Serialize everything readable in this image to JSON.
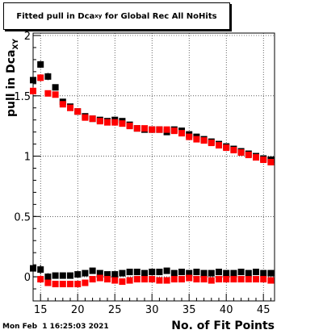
{
  "title": {
    "main": "Fitted pull in Dca",
    "sub": "xy",
    "rest": " for Global Rec All NoHits"
  },
  "ylabel": {
    "main": "pull in Dca",
    "sub": "XY"
  },
  "xlabel": "No. of Fit Points",
  "timestamp": "Mon Feb  1 16:25:03 2021",
  "colors": {
    "series_black": "#000000",
    "series_red": "#ff0000",
    "axis": "#000000",
    "grid": "#000000"
  },
  "chart_data": {
    "type": "scatter",
    "grid": true,
    "xlim": [
      14,
      46.5
    ],
    "ylim": [
      -0.2,
      2.02
    ],
    "x_ticks": [
      15,
      20,
      25,
      30,
      35,
      40,
      45
    ],
    "y_ticks": [
      0,
      0.5,
      1,
      1.5,
      2
    ],
    "y_tick_labels": [
      "0",
      "0.5",
      "1",
      "1.5",
      "2"
    ],
    "series": [
      {
        "color": "#000000",
        "x": [
          14,
          15,
          16,
          17,
          18,
          19,
          20,
          21,
          22,
          23,
          24,
          25,
          26,
          27,
          28,
          29,
          30,
          31,
          32,
          33,
          34,
          35,
          36,
          37,
          38,
          39,
          40,
          41,
          42,
          43,
          44,
          45,
          46
        ],
        "y": [
          1.63,
          1.76,
          1.66,
          1.57,
          1.45,
          1.41,
          1.37,
          1.33,
          1.31,
          1.3,
          1.29,
          1.3,
          1.29,
          1.26,
          1.23,
          1.22,
          1.22,
          1.22,
          1.2,
          1.22,
          1.21,
          1.18,
          1.16,
          1.14,
          1.12,
          1.1,
          1.08,
          1.06,
          1.04,
          1.02,
          1.0,
          0.98,
          0.97
        ],
        "err": [
          0.04,
          0.03,
          0.03,
          0.02,
          0.02,
          0.02,
          0.01,
          0.01,
          0.01,
          0.01,
          0.01,
          0.01,
          0.01,
          0.01,
          0.01,
          0.01,
          0.01,
          0.01,
          0.01,
          0.01,
          0.01,
          0.01,
          0.01,
          0.01,
          0.01,
          0.01,
          0.01,
          0.01,
          0.01,
          0.01,
          0.01,
          0.01,
          0.01
        ]
      },
      {
        "color": "#000000",
        "x": [
          14,
          15,
          16,
          17,
          18,
          19,
          20,
          21,
          22,
          23,
          24,
          25,
          26,
          27,
          28,
          29,
          30,
          31,
          32,
          33,
          34,
          35,
          36,
          37,
          38,
          39,
          40,
          41,
          42,
          43,
          44,
          45,
          46
        ],
        "y": [
          0.07,
          0.06,
          0.0,
          0.01,
          0.01,
          0.01,
          0.02,
          0.03,
          0.05,
          0.03,
          0.02,
          0.02,
          0.03,
          0.04,
          0.04,
          0.03,
          0.04,
          0.04,
          0.05,
          0.03,
          0.04,
          0.03,
          0.04,
          0.03,
          0.03,
          0.04,
          0.03,
          0.03,
          0.04,
          0.03,
          0.04,
          0.03,
          0.03
        ],
        "err": [
          0.05,
          0.04,
          0.03,
          0.02,
          0.02,
          0.02,
          0.01,
          0.01,
          0.01,
          0.01,
          0.01,
          0.01,
          0.01,
          0.01,
          0.01,
          0.01,
          0.01,
          0.01,
          0.01,
          0.01,
          0.01,
          0.01,
          0.01,
          0.01,
          0.01,
          0.01,
          0.01,
          0.01,
          0.01,
          0.01,
          0.01,
          0.01,
          0.01
        ]
      },
      {
        "color": "#ff0000",
        "x": [
          14,
          15,
          16,
          17,
          18,
          19,
          20,
          21,
          22,
          23,
          24,
          25,
          26,
          27,
          28,
          29,
          30,
          31,
          32,
          33,
          34,
          35,
          36,
          37,
          38,
          39,
          40,
          41,
          42,
          43,
          44,
          45,
          46
        ],
        "y": [
          1.54,
          1.65,
          1.52,
          1.51,
          1.43,
          1.4,
          1.37,
          1.32,
          1.31,
          1.29,
          1.28,
          1.28,
          1.27,
          1.25,
          1.23,
          1.23,
          1.22,
          1.22,
          1.22,
          1.21,
          1.19,
          1.16,
          1.14,
          1.13,
          1.11,
          1.09,
          1.07,
          1.05,
          1.03,
          1.01,
          0.99,
          0.97,
          0.95
        ],
        "err": [
          0.03,
          0.03,
          0.02,
          0.02,
          0.02,
          0.01,
          0.01,
          0.01,
          0.01,
          0.01,
          0.01,
          0.01,
          0.01,
          0.01,
          0.01,
          0.01,
          0.01,
          0.01,
          0.01,
          0.01,
          0.01,
          0.01,
          0.01,
          0.01,
          0.01,
          0.01,
          0.01,
          0.01,
          0.01,
          0.01,
          0.01,
          0.01,
          0.01
        ]
      },
      {
        "color": "#ff0000",
        "x": [
          15,
          16,
          17,
          18,
          19,
          20,
          21,
          22,
          23,
          24,
          25,
          26,
          27,
          28,
          29,
          30,
          31,
          32,
          33,
          34,
          35,
          36,
          37,
          38,
          39,
          40,
          41,
          42,
          43,
          44,
          45,
          46
        ],
        "y": [
          -0.02,
          -0.05,
          -0.06,
          -0.06,
          -0.06,
          -0.06,
          -0.05,
          -0.02,
          -0.01,
          -0.02,
          -0.03,
          -0.04,
          -0.03,
          -0.02,
          -0.02,
          -0.02,
          -0.03,
          -0.03,
          -0.02,
          -0.02,
          -0.01,
          -0.02,
          -0.02,
          -0.03,
          -0.02,
          -0.02,
          -0.02,
          -0.02,
          -0.02,
          -0.02,
          -0.02,
          -0.03
        ],
        "err": [
          0.03,
          0.02,
          0.02,
          0.02,
          0.01,
          0.01,
          0.01,
          0.01,
          0.01,
          0.01,
          0.01,
          0.01,
          0.01,
          0.01,
          0.01,
          0.01,
          0.01,
          0.01,
          0.01,
          0.01,
          0.01,
          0.01,
          0.01,
          0.01,
          0.01,
          0.01,
          0.01,
          0.01,
          0.01,
          0.01,
          0.01,
          0.01
        ]
      }
    ]
  }
}
